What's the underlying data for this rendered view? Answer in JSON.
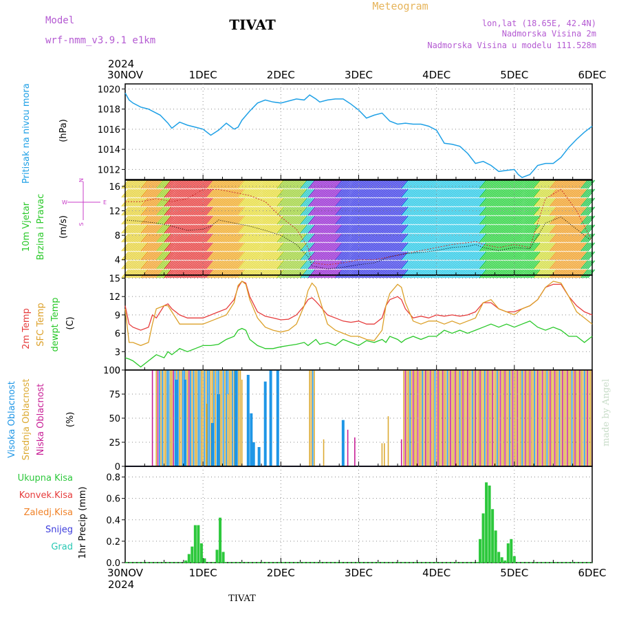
{
  "header": {
    "model_label": "Model",
    "model_name": "wrf-nmm_v3.9.1 e1km",
    "station": "TIVAT",
    "title": "Meteogram",
    "lonlat": "lon,lat (18.65E, 42.4N)",
    "elevation": "Nadmorska Visina 2m",
    "model_elevation": "Nadmorska Visina u modelu 111.528m"
  },
  "footer": {
    "station": "TIVAT",
    "watermark": "made by Angel"
  },
  "colors": {
    "pressure": "#1ea0e6",
    "t2m": "#e63c3c",
    "sfc": "#dca028",
    "dewpt": "#28c828",
    "high_cloud": "#1e96e6",
    "mid_cloud": "#dcaa32",
    "low_cloud": "#c81e96",
    "precip_total": "#2dc83c",
    "precip_conv": "#e63c3c",
    "precip_frz": "#f08228",
    "snow": "#3c3cdc",
    "hail": "#28c8b4",
    "wind_label": "#c83cc8"
  },
  "chart_data": [
    {
      "type": "line",
      "panel": "pressure",
      "ylabel_lines": [
        "Pritisak na nivou mora",
        "(hPa)"
      ],
      "ylim": [
        1011,
        1020.5
      ],
      "yticks": [
        1012,
        1014,
        1016,
        1018,
        1020
      ],
      "x_units": "days since 30NOV 00UTC",
      "x": [
        0,
        0.05,
        0.1,
        0.2,
        0.3,
        0.45,
        0.55,
        0.6,
        0.7,
        0.8,
        0.9,
        1.0,
        1.1,
        1.2,
        1.3,
        1.4,
        1.45,
        1.5,
        1.6,
        1.7,
        1.8,
        1.9,
        2.0,
        2.1,
        2.2,
        2.3,
        2.37,
        2.45,
        2.5,
        2.6,
        2.7,
        2.8,
        2.9,
        3.0,
        3.1,
        3.2,
        3.3,
        3.4,
        3.5,
        3.6,
        3.7,
        3.8,
        3.9,
        4.0,
        4.1,
        4.2,
        4.3,
        4.4,
        4.5,
        4.6,
        4.7,
        4.8,
        4.9,
        5.0,
        5.05,
        5.1,
        5.2,
        5.3,
        5.4,
        5.5,
        5.6,
        5.7,
        5.8,
        5.9,
        6.0
      ],
      "values": [
        1019.6,
        1018.9,
        1018.6,
        1018.2,
        1018.0,
        1017.4,
        1016.6,
        1016.1,
        1016.7,
        1016.4,
        1016.2,
        1016.0,
        1015.4,
        1015.9,
        1016.6,
        1016.0,
        1016.2,
        1016.9,
        1017.8,
        1018.6,
        1018.9,
        1018.7,
        1018.6,
        1018.8,
        1019.0,
        1018.9,
        1019.4,
        1019.0,
        1018.7,
        1018.9,
        1019.0,
        1019.0,
        1018.5,
        1017.9,
        1017.1,
        1017.4,
        1017.6,
        1016.8,
        1016.5,
        1016.6,
        1016.5,
        1016.5,
        1016.3,
        1015.9,
        1014.6,
        1014.5,
        1014.3,
        1013.6,
        1012.6,
        1012.8,
        1012.4,
        1011.8,
        1011.9,
        1012.0,
        1011.5,
        1011.2,
        1011.5,
        1012.4,
        1012.6,
        1012.6,
        1013.2,
        1014.2,
        1015.0,
        1015.7,
        1016.3
      ]
    },
    {
      "type": "line",
      "panel": "wind",
      "ylabel_lines": [
        "10m Vjetar",
        "Brzina i Pravac",
        "(m/s)"
      ],
      "compass": {
        "n": "N",
        "s": "S",
        "e": "E",
        "w": "W"
      },
      "ylim": [
        1.5,
        17
      ],
      "yticks": [
        4,
        8,
        12,
        16
      ],
      "x": [
        0,
        0.2,
        0.4,
        0.6,
        0.8,
        1.0,
        1.1,
        1.2,
        1.4,
        1.6,
        1.8,
        2.0,
        2.2,
        2.35,
        2.4,
        2.6,
        2.8,
        3.0,
        3.2,
        3.4,
        3.6,
        3.8,
        4.0,
        4.2,
        4.4,
        4.5,
        4.6,
        4.8,
        5.0,
        5.2,
        5.4,
        5.6,
        5.8,
        6.0
      ],
      "speed_values": [
        10.5,
        10.3,
        10.0,
        9.5,
        8.8,
        9.0,
        9.5,
        10.5,
        10.0,
        9.5,
        8.8,
        8.0,
        6.5,
        4.5,
        3.0,
        2.5,
        2.8,
        3.2,
        3.5,
        4.5,
        5.0,
        5.2,
        5.5,
        6.0,
        6.2,
        6.5,
        6.0,
        5.5,
        6.0,
        5.8,
        10.0,
        11.0,
        9.0,
        7.0
      ],
      "gust_values": [
        13.5,
        13.5,
        14.0,
        13.5,
        14.0,
        15.5,
        15.5,
        15.5,
        15.0,
        14.5,
        13.5,
        11.0,
        9.0,
        6.0,
        3.5,
        3.2,
        3.5,
        4.0,
        4.0,
        4.5,
        5.0,
        5.5,
        6.0,
        6.5,
        6.8,
        7.0,
        6.5,
        6.0,
        6.5,
        6.0,
        14.0,
        15.5,
        12.0,
        7.0
      ],
      "direction_bands": [
        {
          "from": 0.0,
          "to": 0.25,
          "color": "#e6d23c"
        },
        {
          "from": 0.25,
          "to": 0.45,
          "color": "#f0a028"
        },
        {
          "from": 0.45,
          "to": 0.55,
          "color": "#a0d228"
        },
        {
          "from": 0.55,
          "to": 1.1,
          "color": "#e63c3c"
        },
        {
          "from": 1.1,
          "to": 1.5,
          "color": "#f0aa28"
        },
        {
          "from": 1.5,
          "to": 2.0,
          "color": "#e6dc3c"
        },
        {
          "from": 2.0,
          "to": 2.3,
          "color": "#a0d23c"
        },
        {
          "from": 2.3,
          "to": 2.4,
          "color": "#28c8c8"
        },
        {
          "from": 2.4,
          "to": 2.75,
          "color": "#9628d2"
        },
        {
          "from": 2.75,
          "to": 3.6,
          "color": "#3c3ce6"
        },
        {
          "from": 3.6,
          "to": 4.6,
          "color": "#28c8e6"
        },
        {
          "from": 4.6,
          "to": 5.3,
          "color": "#28d23c"
        },
        {
          "from": 5.3,
          "to": 5.5,
          "color": "#d2dc3c"
        },
        {
          "from": 5.5,
          "to": 5.9,
          "color": "#f0a028"
        },
        {
          "from": 5.9,
          "to": 6.0,
          "color": "#28c850"
        }
      ]
    },
    {
      "type": "line",
      "panel": "temperature",
      "ylabel_lines": [
        "2m Temp",
        "SFC Temp",
        "dewpt Temp",
        "(C)"
      ],
      "ylim": [
        0,
        15.5
      ],
      "yticks": [
        0,
        3,
        6,
        9,
        12,
        15
      ],
      "x": [
        0,
        0.05,
        0.1,
        0.2,
        0.3,
        0.35,
        0.4,
        0.5,
        0.55,
        0.6,
        0.7,
        0.8,
        0.9,
        1.0,
        1.1,
        1.2,
        1.3,
        1.4,
        1.45,
        1.5,
        1.55,
        1.6,
        1.7,
        1.8,
        1.9,
        2.0,
        2.1,
        2.2,
        2.3,
        2.35,
        2.4,
        2.45,
        2.5,
        2.6,
        2.7,
        2.8,
        2.9,
        3.0,
        3.1,
        3.2,
        3.3,
        3.35,
        3.4,
        3.5,
        3.55,
        3.6,
        3.7,
        3.8,
        3.9,
        4.0,
        4.1,
        4.2,
        4.3,
        4.4,
        4.5,
        4.6,
        4.7,
        4.8,
        4.9,
        5.0,
        5.1,
        5.2,
        5.3,
        5.4,
        5.5,
        5.6,
        5.7,
        5.8,
        5.9,
        6.0
      ],
      "series": [
        {
          "name": "2m Temp",
          "color": "#e63c3c",
          "values": [
            10.5,
            7.5,
            7.0,
            6.5,
            7.0,
            9.0,
            8.5,
            10.5,
            10.8,
            10.0,
            9.0,
            8.5,
            8.5,
            8.5,
            9.0,
            9.5,
            10.0,
            11.5,
            13.5,
            14.5,
            14.2,
            12.0,
            9.5,
            8.8,
            8.5,
            8.2,
            8.3,
            9.0,
            10.5,
            11.5,
            11.8,
            11.2,
            10.5,
            9.0,
            8.5,
            8.0,
            7.8,
            8.0,
            7.5,
            7.5,
            8.5,
            10.5,
            11.5,
            12.0,
            11.5,
            10.0,
            8.5,
            8.8,
            8.5,
            9.0,
            8.8,
            9.0,
            8.8,
            9.0,
            9.5,
            11.0,
            11.0,
            10.0,
            9.5,
            9.5,
            10.0,
            10.5,
            11.5,
            13.5,
            14.0,
            14.0,
            12.0,
            10.5,
            9.5,
            9.0
          ]
        },
        {
          "name": "SFC Temp",
          "color": "#dca028",
          "values": [
            10.0,
            4.5,
            4.5,
            4.0,
            4.5,
            7.5,
            10.0,
            10.5,
            10.5,
            9.5,
            7.5,
            7.5,
            7.5,
            7.5,
            8.0,
            8.5,
            9.0,
            11.0,
            13.8,
            14.5,
            14.0,
            11.5,
            8.5,
            7.0,
            6.5,
            6.2,
            6.5,
            7.5,
            10.5,
            13.0,
            14.2,
            13.5,
            11.5,
            7.5,
            6.5,
            6.0,
            5.5,
            5.5,
            5.0,
            4.8,
            6.5,
            10.5,
            12.5,
            14.0,
            13.5,
            11.0,
            8.0,
            7.5,
            8.0,
            8.0,
            7.5,
            8.0,
            7.5,
            8.0,
            8.5,
            11.0,
            11.5,
            10.0,
            9.5,
            9.0,
            10.0,
            10.5,
            11.5,
            13.5,
            14.5,
            14.2,
            12.0,
            9.5,
            8.5,
            7.5
          ]
        },
        {
          "name": "dewpt Temp",
          "color": "#28c828",
          "values": [
            2.0,
            1.8,
            1.5,
            0.5,
            1.5,
            2.0,
            2.5,
            2.0,
            3.0,
            2.5,
            3.5,
            3.0,
            3.5,
            4.0,
            4.0,
            4.2,
            5.0,
            5.5,
            6.5,
            6.8,
            6.5,
            5.0,
            4.0,
            3.5,
            3.5,
            3.8,
            4.0,
            4.2,
            4.5,
            4.0,
            4.5,
            5.0,
            4.2,
            4.5,
            4.0,
            5.0,
            4.5,
            4.0,
            4.8,
            4.5,
            5.0,
            4.5,
            5.5,
            5.0,
            4.5,
            5.0,
            5.5,
            5.0,
            5.5,
            5.5,
            6.5,
            6.0,
            6.5,
            6.0,
            6.5,
            7.0,
            7.5,
            7.0,
            7.5,
            7.0,
            7.5,
            8.0,
            7.0,
            6.5,
            7.0,
            6.5,
            5.5,
            5.5,
            4.5,
            5.5
          ]
        }
      ]
    },
    {
      "type": "bar",
      "panel": "cloud",
      "ylabel_lines": [
        "Visoka Oblacnost",
        "Srednja Oblacnost",
        "Niska Oblacnost",
        "(%)"
      ],
      "ylim": [
        0,
        100
      ],
      "yticks": [
        0,
        25,
        50,
        75,
        100
      ],
      "segments": [
        {
          "from": 0.4,
          "to": 1.0,
          "pattern": [
            "mid",
            "low",
            "high",
            "mid",
            "high",
            "mid",
            "mid",
            "high",
            "high",
            "mid"
          ]
        },
        {
          "from": 1.0,
          "to": 1.5,
          "pattern": [
            "mid",
            "high",
            "mid",
            "high",
            "high",
            "mid"
          ]
        },
        {
          "from": 2.37,
          "to": 2.43,
          "pattern": [
            "mid",
            "mid",
            "high"
          ]
        },
        {
          "from": 3.58,
          "to": 6.0,
          "pattern": [
            "mid",
            "low",
            "mid",
            "mid",
            "high",
            "mid",
            "low",
            "mid"
          ]
        }
      ],
      "bars": [
        {
          "x": 0.35,
          "values": {
            "low": 100
          }
        },
        {
          "x": 0.58,
          "values": {
            "mid": 85
          }
        },
        {
          "x": 0.66,
          "values": {
            "high": 90
          }
        },
        {
          "x": 0.77,
          "values": {
            "high": 90
          }
        },
        {
          "x": 1.05,
          "values": {
            "mid": 65
          }
        },
        {
          "x": 1.12,
          "values": {
            "high": 45
          }
        },
        {
          "x": 1.2,
          "values": {
            "high": 75
          }
        },
        {
          "x": 1.32,
          "values": {
            "mid": 75
          }
        },
        {
          "x": 1.42,
          "values": {
            "high": 100
          }
        },
        {
          "x": 1.5,
          "values": {
            "mid": 90
          }
        },
        {
          "x": 1.58,
          "values": {
            "high": 95
          }
        },
        {
          "x": 1.62,
          "values": {
            "high": 55
          }
        },
        {
          "x": 1.65,
          "values": {
            "high": 25
          }
        },
        {
          "x": 1.72,
          "values": {
            "high": 20
          }
        },
        {
          "x": 1.8,
          "values": {
            "high": 88
          }
        },
        {
          "x": 1.87,
          "values": {
            "high": 100
          }
        },
        {
          "x": 1.96,
          "values": {
            "high": 100
          }
        },
        {
          "x": 2.55,
          "values": {
            "mid": 28
          }
        },
        {
          "x": 2.8,
          "values": {
            "high": 48
          }
        },
        {
          "x": 2.86,
          "values": {
            "low": 38
          }
        },
        {
          "x": 2.95,
          "values": {
            "low": 30
          }
        },
        {
          "x": 3.3,
          "values": {
            "mid": 24
          }
        },
        {
          "x": 3.33,
          "values": {
            "mid": 24
          }
        },
        {
          "x": 3.38,
          "values": {
            "mid": 52
          }
        },
        {
          "x": 3.55,
          "values": {
            "low": 28
          }
        }
      ]
    },
    {
      "type": "bar",
      "panel": "precip",
      "ylabel_lines": [
        "1hr Precip (mm)"
      ],
      "legend": [
        "Ukupna Kisa",
        "Konvek.Kisa",
        "Zaledj.Kisa",
        "Snijeg",
        "Grad"
      ],
      "ylim": [
        0,
        0.9
      ],
      "yticks": [
        0,
        0.2,
        0.4,
        0.6,
        0.8
      ],
      "x": [
        0.78,
        0.82,
        0.86,
        0.9,
        0.94,
        0.98,
        1.02,
        1.18,
        1.22,
        1.26,
        4.56,
        4.6,
        4.64,
        4.68,
        4.72,
        4.76,
        4.8,
        4.84,
        4.88,
        4.92,
        4.96,
        5.0
      ],
      "values": [
        0.02,
        0.08,
        0.15,
        0.35,
        0.35,
        0.18,
        0.04,
        0.12,
        0.42,
        0.1,
        0.22,
        0.46,
        0.75,
        0.72,
        0.5,
        0.3,
        0.1,
        0.05,
        0.02,
        0.18,
        0.22,
        0.06
      ]
    }
  ],
  "x_axis": {
    "year": "2024",
    "ticks": [
      {
        "x": 0,
        "label": "30NOV"
      },
      {
        "x": 1,
        "label": "1DEC"
      },
      {
        "x": 2,
        "label": "2DEC"
      },
      {
        "x": 3,
        "label": "3DEC"
      },
      {
        "x": 4,
        "label": "4DEC"
      },
      {
        "x": 5,
        "label": "5DEC"
      },
      {
        "x": 6,
        "label": "6DEC"
      }
    ]
  }
}
